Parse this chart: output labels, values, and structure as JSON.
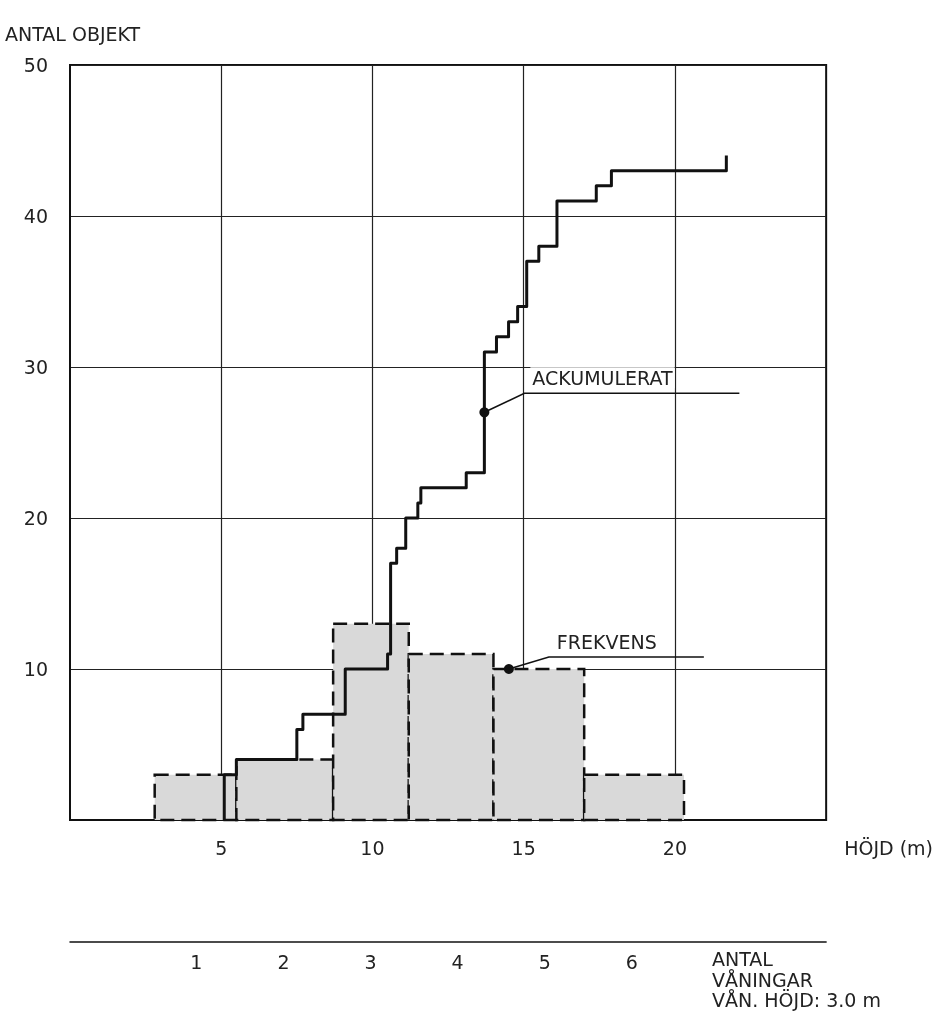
{
  "chart_data": {
    "type": "histogram",
    "xlabel": "HÖJD (m)",
    "ylabel": "ANTAL OBJEKT",
    "x2label": "ANTAL VÅNINGAR",
    "annotations": [
      "VÅN. HÖJD: 3.0 m"
    ],
    "xlim": [
      0,
      25
    ],
    "xticks": [
      5,
      10,
      15,
      20
    ],
    "ylim": [
      0,
      50
    ],
    "yticks": [
      10,
      20,
      30,
      40,
      50
    ],
    "x2lim": [
      -0.45,
      8.23
    ],
    "x2ticks": [
      1,
      2,
      3,
      4,
      5,
      6
    ],
    "grid": true,
    "legend": false,
    "series": [
      {
        "name": "FREKVENS",
        "color": "#d9d9d9",
        "line_style": "dashed",
        "bins": [
          2.8,
          5.5,
          8.7,
          11.2,
          14,
          17,
          20.3
        ],
        "values": [
          3,
          4,
          13,
          11,
          10,
          3
        ]
      },
      {
        "name": "ACKUMULERAT",
        "type": "step",
        "color": "#111111",
        "x": [
          5.1,
          5.1,
          5.5,
          7.5,
          7.7,
          9.1,
          10.5,
          10.6,
          10.8,
          11.1,
          11.5,
          11.6,
          13.1,
          13.7,
          14.1,
          14.5,
          14.8,
          15.1,
          15.5,
          16.1,
          17.4,
          17.9,
          21.7
        ],
        "values": [
          0,
          3,
          4,
          6,
          7,
          10,
          11,
          17,
          18,
          20,
          21,
          22,
          23,
          31,
          32,
          33,
          34,
          37,
          38,
          41,
          42,
          43,
          44
        ]
      }
    ]
  }
}
